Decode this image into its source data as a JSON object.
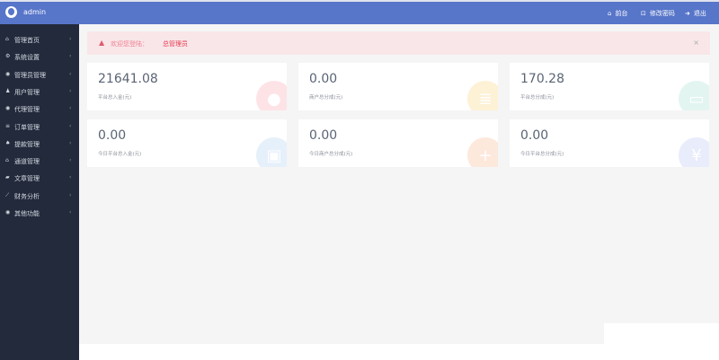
{
  "header": {
    "username": "admin",
    "links": [
      {
        "icon": "home-icon",
        "label": "前台"
      },
      {
        "icon": "lock-icon",
        "label": "修改密码"
      },
      {
        "icon": "sign-out-icon",
        "label": "退出"
      }
    ]
  },
  "sidebar": {
    "items": [
      {
        "icon": "home-icon",
        "label": "管理首页"
      },
      {
        "icon": "cogs-icon",
        "label": "系统设置"
      },
      {
        "icon": "user-circle-icon",
        "label": "管理员管理"
      },
      {
        "icon": "users-icon",
        "label": "用户管理"
      },
      {
        "icon": "user-circle-icon",
        "label": "代理管理"
      },
      {
        "icon": "list-icon",
        "label": "订单管理"
      },
      {
        "icon": "money-bag-icon",
        "label": "提款管理"
      },
      {
        "icon": "bank-icon",
        "label": "通道管理"
      },
      {
        "icon": "book-icon",
        "label": "文章管理"
      },
      {
        "icon": "line-chart-icon",
        "label": "财务分析"
      },
      {
        "icon": "user-circle-icon",
        "label": "其他功能"
      }
    ]
  },
  "alert": {
    "text": "欢迎您登陆：",
    "role": "总管理员",
    "close": "×"
  },
  "cards": [
    {
      "value": "21641.08",
      "label": "平台总入金(元)",
      "icon": "piggy-bank-icon",
      "color": "#fde3e6"
    },
    {
      "value": "0.00",
      "label": "商户总分成(元)",
      "icon": "coins-icon",
      "color": "#fdf1d6"
    },
    {
      "value": "170.28",
      "label": "平台总分成(元)",
      "icon": "credit-card-icon",
      "color": "#e3f5f1"
    },
    {
      "value": "0.00",
      "label": "今日平台总入金(元)",
      "icon": "wallet-icon",
      "color": "#e5f0fb"
    },
    {
      "value": "0.00",
      "label": "今日商户总分成(元)",
      "icon": "coins-plus-icon",
      "color": "#fde8dc"
    },
    {
      "value": "0.00",
      "label": "今日平台总分成(元)",
      "icon": "yen-bag-icon",
      "color": "#e8ecfb"
    }
  ]
}
